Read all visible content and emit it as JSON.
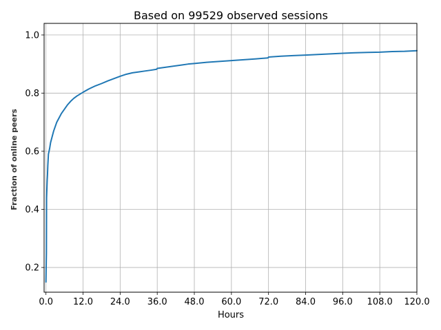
{
  "chart_data": {
    "type": "line",
    "title": "Based on 99529 observed sessions",
    "xlabel": "Hours",
    "ylabel": "Fraction of online peers",
    "xlim": [
      -0.6,
      120.0
    ],
    "ylim": [
      0.115,
      1.04
    ],
    "grid": true,
    "xticks": [
      0.0,
      12.0,
      24.0,
      36.0,
      48.0,
      60.0,
      72.0,
      84.0,
      96.0,
      108.0,
      120.0
    ],
    "xtick_labels": [
      "0.0",
      "12.0",
      "24.0",
      "36.0",
      "48.0",
      "60.0",
      "72.0",
      "84.0",
      "96.0",
      "108.0",
      "120.0"
    ],
    "yticks": [
      0.2,
      0.4,
      0.6,
      0.8,
      1.0
    ],
    "ytick_labels": [
      "0.2",
      "0.4",
      "0.6",
      "0.8",
      "1.0"
    ],
    "series": [
      {
        "color": "#1f77b4",
        "x": [
          0.0,
          0.05,
          0.1,
          0.15,
          0.2,
          0.3,
          0.4,
          0.5,
          0.6,
          0.7,
          0.8,
          1.0,
          1.2,
          1.5,
          2.0,
          2.5,
          3.0,
          3.5,
          4.0,
          5.0,
          6.0,
          7.0,
          8.0,
          9.0,
          10.0,
          12.0,
          14.0,
          16.0,
          18.0,
          20.0,
          22.0,
          24.0,
          26.0,
          28.0,
          30.0,
          32.0,
          34.0,
          35.8,
          36.0,
          38.0,
          40.0,
          42.0,
          44.0,
          46.0,
          48.0,
          52.0,
          56.0,
          60.0,
          64.0,
          68.0,
          71.8,
          72.0,
          76.0,
          80.0,
          84.0,
          88.0,
          92.0,
          96.0,
          100.0,
          104.0,
          108.0,
          112.0,
          116.0,
          120.0
        ],
        "y": [
          0.15,
          0.19,
          0.22,
          0.25,
          0.44,
          0.47,
          0.5,
          0.52,
          0.55,
          0.57,
          0.59,
          0.6,
          0.61,
          0.63,
          0.65,
          0.67,
          0.685,
          0.7,
          0.71,
          0.73,
          0.745,
          0.76,
          0.772,
          0.782,
          0.79,
          0.803,
          0.815,
          0.825,
          0.833,
          0.842,
          0.85,
          0.858,
          0.865,
          0.87,
          0.873,
          0.876,
          0.879,
          0.882,
          0.885,
          0.888,
          0.891,
          0.894,
          0.897,
          0.9,
          0.902,
          0.906,
          0.909,
          0.912,
          0.915,
          0.918,
          0.921,
          0.924,
          0.927,
          0.929,
          0.931,
          0.933,
          0.935,
          0.937,
          0.939,
          0.94,
          0.941,
          0.943,
          0.944,
          0.946
        ]
      }
    ]
  }
}
